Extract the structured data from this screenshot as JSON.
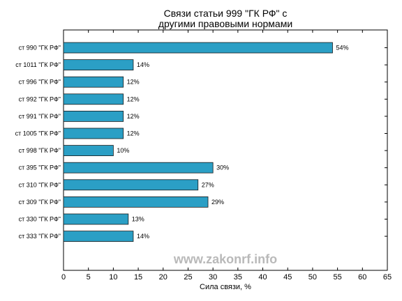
{
  "chart_data": {
    "type": "bar",
    "orientation": "horizontal",
    "title": [
      "Связи статьи 999 \"ГК РФ\" с",
      "другими правовыми нормами"
    ],
    "xlabel": "Сила связи, %",
    "ylabel": "",
    "xlim": [
      0,
      65
    ],
    "xticks": [
      "0",
      "5",
      "10",
      "15",
      "20",
      "25",
      "30",
      "35",
      "40",
      "45",
      "50",
      "55",
      "60",
      "65"
    ],
    "categories": [
      "ст 990 \"ГК РФ\"",
      "ст 1011 \"ГК РФ\"",
      "ст 996 \"ГК РФ\"",
      "ст 992 \"ГК РФ\"",
      "ст 991 \"ГК РФ\"",
      "ст 1005 \"ГК РФ\"",
      "ст 998 \"ГК РФ\"",
      "ст 395 \"ГК РФ\"",
      "ст 310 \"ГК РФ\"",
      "ст 309 \"ГК РФ\"",
      "ст 330 \"ГК РФ\"",
      "ст 333 \"ГК РФ\""
    ],
    "values": [
      54,
      14,
      12,
      12,
      12,
      12,
      10,
      30,
      27,
      29,
      13,
      14
    ],
    "value_labels": [
      "54%",
      "14%",
      "12%",
      "12%",
      "12%",
      "12%",
      "10%",
      "30%",
      "27%",
      "29%",
      "13%",
      "14%"
    ],
    "bar_color": "#2b9fc5",
    "bar_edge_color": "#1a1a1a",
    "grid": false,
    "watermark": "www.zakonrf.info"
  }
}
